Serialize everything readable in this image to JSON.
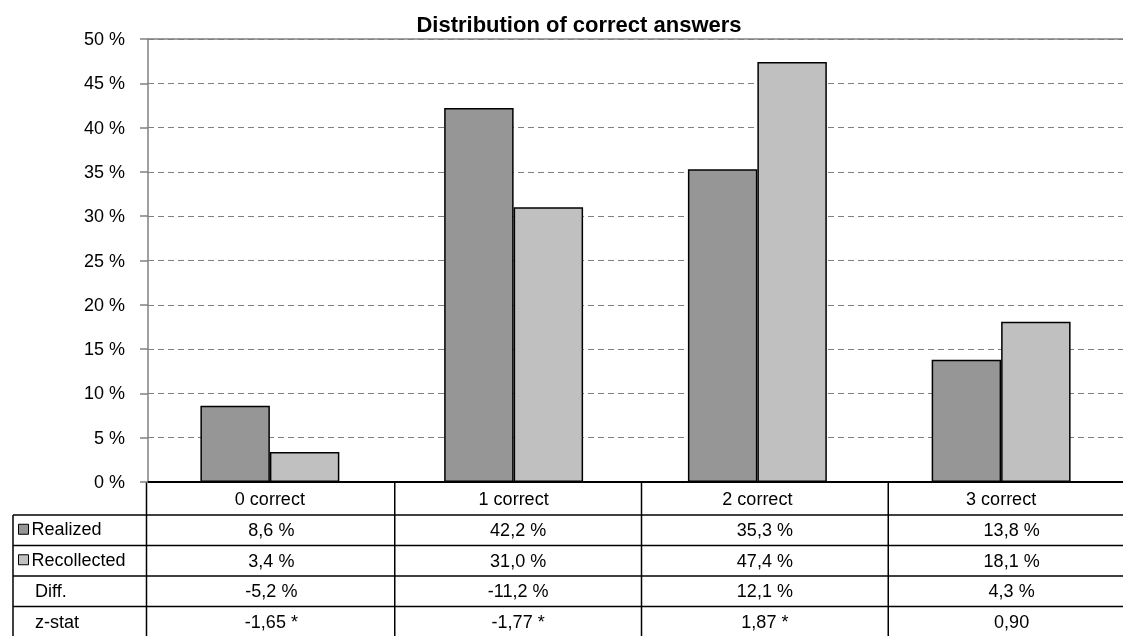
{
  "chart_data": {
    "type": "bar",
    "title": "Distribution of correct answers",
    "categories": [
      "0 correct",
      "1 correct",
      "2 correct",
      "3 correct"
    ],
    "series": [
      {
        "name": "Realized",
        "color": "#969696",
        "values": [
          8.6,
          42.2,
          35.3,
          13.8
        ],
        "value_labels": [
          "8,6 %",
          "42,2 %",
          "35,3 %",
          "13,8 %"
        ]
      },
      {
        "name": "Recollected",
        "color": "#c0c0c0",
        "values": [
          3.4,
          31.0,
          47.4,
          18.1
        ],
        "value_labels": [
          "3,4 %",
          "31,0 %",
          "47,4 %",
          "18,1 %"
        ]
      }
    ],
    "ylim": [
      0,
      50
    ],
    "yticks": [
      {
        "value": 0,
        "label": "0 %"
      },
      {
        "value": 5,
        "label": "5 %"
      },
      {
        "value": 10,
        "label": "10 %"
      },
      {
        "value": 15,
        "label": "15 %"
      },
      {
        "value": 20,
        "label": "20 %"
      },
      {
        "value": 25,
        "label": "25 %"
      },
      {
        "value": 30,
        "label": "30 %"
      },
      {
        "value": 35,
        "label": "35 %"
      },
      {
        "value": 40,
        "label": "40 %"
      },
      {
        "value": 45,
        "label": "45 %"
      },
      {
        "value": 50,
        "label": "50 %"
      }
    ],
    "grid": "y",
    "legend": "bottom left",
    "annotations": [
      "Diff.",
      "-5,2 %",
      "-11,2 %",
      "12,1 %",
      "4,3 %",
      "z-stat",
      "-1,65 *",
      "-1,77 *",
      "1,87 *",
      "0,90"
    ]
  }
}
